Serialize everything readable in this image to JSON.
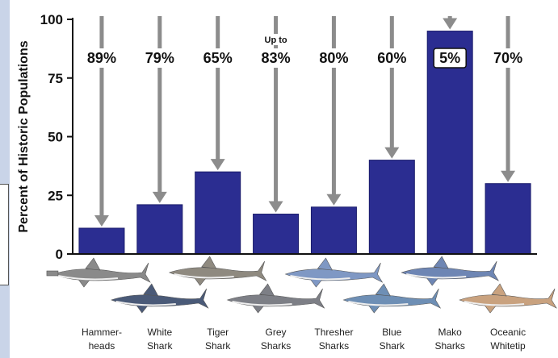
{
  "chart_data": {
    "type": "bar",
    "title": "",
    "ylabel": "Percent of Historic Populations",
    "xlabel": "",
    "ylim": [
      0,
      100
    ],
    "yticks": [
      0,
      25,
      50,
      75,
      100
    ],
    "categories": [
      [
        "Hammer-",
        "heads"
      ],
      [
        "White",
        "Shark"
      ],
      [
        "Tiger",
        "Shark"
      ],
      [
        "Grey",
        "Sharks"
      ],
      [
        "Thresher",
        "Sharks"
      ],
      [
        "Blue",
        "Shark"
      ],
      [
        "Mako",
        "Sharks"
      ],
      [
        "Oceanic",
        "Whitetip"
      ]
    ],
    "values": [
      11,
      21,
      35,
      17,
      20,
      40,
      95,
      30
    ],
    "annotations": [
      {
        "label": "89%",
        "prefix": ""
      },
      {
        "label": "79%",
        "prefix": ""
      },
      {
        "label": "65%",
        "prefix": ""
      },
      {
        "label": "83%",
        "prefix": "Up to"
      },
      {
        "label": "80%",
        "prefix": ""
      },
      {
        "label": "60%",
        "prefix": ""
      },
      {
        "label": "5%",
        "prefix": "",
        "boxed": true
      },
      {
        "label": "70%",
        "prefix": ""
      }
    ],
    "colors": {
      "bar": "#2b2d91",
      "bar_edge": "#1a1c6b",
      "arrow": "#8c8c8c",
      "axis": "#111111"
    },
    "grid": false,
    "legend": "none"
  },
  "illustrations": [
    "hammerhead-shark-icon",
    "white-shark-icon",
    "tiger-shark-icon",
    "grey-shark-icon",
    "thresher-shark-icon",
    "blue-shark-icon",
    "mako-shark-icon",
    "oceanic-whitetip-shark-icon"
  ]
}
